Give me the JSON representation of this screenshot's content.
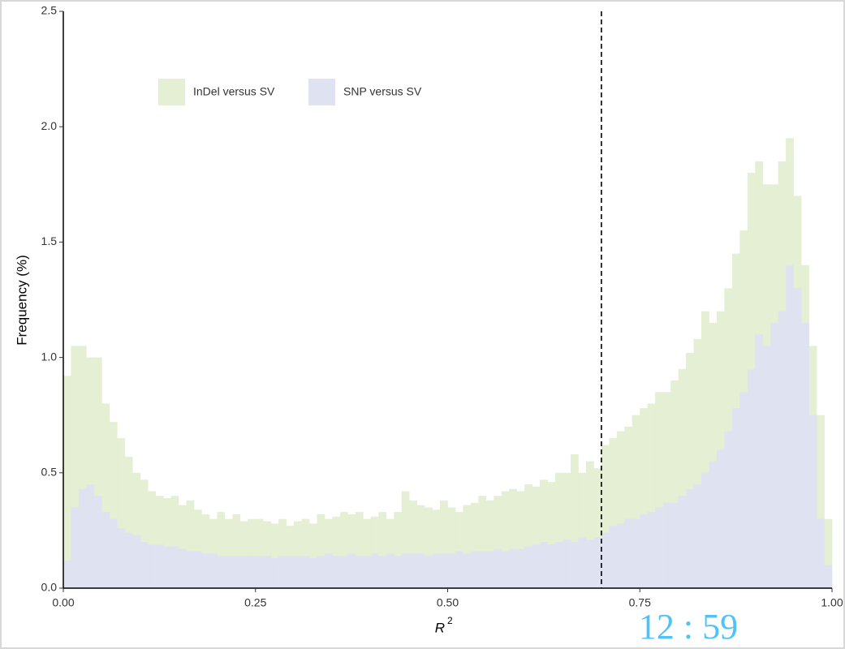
{
  "chart_data": {
    "type": "histogram",
    "xlabel": "R",
    "xlabel_superscript": "2",
    "ylabel": "Frequency (%)",
    "bins": [
      0,
      0.01,
      0.02,
      0.03,
      0.04,
      0.05,
      0.06,
      0.07,
      0.08,
      0.09,
      0.1,
      0.11,
      0.12,
      0.13,
      0.14,
      0.15,
      0.16,
      0.17,
      0.18,
      0.19,
      0.2,
      0.21,
      0.22,
      0.23,
      0.24,
      0.25,
      0.26,
      0.27,
      0.28,
      0.29,
      0.3,
      0.31,
      0.32,
      0.33,
      0.34,
      0.35,
      0.36,
      0.37,
      0.38,
      0.39,
      0.4,
      0.41,
      0.42,
      0.43,
      0.44,
      0.45,
      0.46,
      0.47,
      0.48,
      0.49,
      0.5,
      0.51,
      0.52,
      0.53,
      0.54,
      0.55,
      0.56,
      0.57,
      0.58,
      0.59,
      0.6,
      0.61,
      0.62,
      0.63,
      0.64,
      0.65,
      0.66,
      0.67,
      0.68,
      0.69,
      0.7,
      0.71,
      0.72,
      0.73,
      0.74,
      0.75,
      0.76,
      0.77,
      0.78,
      0.79,
      0.8,
      0.81,
      0.82,
      0.83,
      0.84,
      0.85,
      0.86,
      0.87,
      0.88,
      0.89,
      0.9,
      0.91,
      0.92,
      0.93,
      0.94,
      0.95,
      0.96,
      0.97,
      0.98,
      0.99,
      1
    ],
    "series": [
      {
        "name": "InDel versus SV",
        "color": "#e4efd3",
        "values": [
          0.92,
          1.05,
          1.05,
          1.0,
          1.0,
          0.8,
          0.72,
          0.65,
          0.57,
          0.5,
          0.47,
          0.42,
          0.4,
          0.39,
          0.4,
          0.36,
          0.38,
          0.34,
          0.32,
          0.3,
          0.33,
          0.3,
          0.32,
          0.29,
          0.3,
          0.3,
          0.29,
          0.28,
          0.3,
          0.27,
          0.29,
          0.3,
          0.28,
          0.32,
          0.3,
          0.31,
          0.33,
          0.32,
          0.33,
          0.3,
          0.31,
          0.33,
          0.3,
          0.33,
          0.42,
          0.38,
          0.36,
          0.35,
          0.34,
          0.38,
          0.35,
          0.33,
          0.36,
          0.37,
          0.4,
          0.38,
          0.4,
          0.42,
          0.43,
          0.42,
          0.45,
          0.44,
          0.47,
          0.46,
          0.5,
          0.5,
          0.58,
          0.5,
          0.55,
          0.52,
          0.62,
          0.65,
          0.68,
          0.7,
          0.75,
          0.78,
          0.8,
          0.85,
          0.85,
          0.9,
          0.95,
          1.02,
          1.08,
          1.2,
          1.15,
          1.2,
          1.3,
          1.45,
          1.55,
          1.8,
          1.85,
          1.75,
          1.75,
          1.85,
          1.95,
          1.7,
          1.4,
          1.05,
          0.75,
          0.3
        ]
      },
      {
        "name": "SNP versus SV",
        "color": "#dfe3f1",
        "values": [
          0.12,
          0.35,
          0.43,
          0.45,
          0.4,
          0.33,
          0.3,
          0.26,
          0.24,
          0.23,
          0.2,
          0.19,
          0.19,
          0.18,
          0.18,
          0.17,
          0.16,
          0.16,
          0.15,
          0.15,
          0.14,
          0.14,
          0.14,
          0.14,
          0.14,
          0.14,
          0.14,
          0.13,
          0.14,
          0.14,
          0.14,
          0.14,
          0.13,
          0.14,
          0.15,
          0.14,
          0.14,
          0.15,
          0.14,
          0.14,
          0.15,
          0.14,
          0.15,
          0.14,
          0.15,
          0.15,
          0.15,
          0.14,
          0.15,
          0.15,
          0.15,
          0.16,
          0.15,
          0.16,
          0.16,
          0.16,
          0.17,
          0.16,
          0.17,
          0.17,
          0.18,
          0.19,
          0.2,
          0.19,
          0.2,
          0.21,
          0.2,
          0.22,
          0.21,
          0.22,
          0.24,
          0.27,
          0.28,
          0.3,
          0.3,
          0.32,
          0.33,
          0.35,
          0.37,
          0.37,
          0.4,
          0.43,
          0.45,
          0.5,
          0.55,
          0.6,
          0.68,
          0.78,
          0.85,
          0.95,
          1.1,
          1.05,
          1.15,
          1.2,
          1.4,
          1.3,
          1.15,
          0.75,
          0.3,
          0.1
        ]
      }
    ],
    "vline": 0.7,
    "xlim": [
      0,
      1
    ],
    "ylim": [
      0,
      2.5
    ],
    "xticks": [
      {
        "value": 0,
        "label": "0.00"
      },
      0.25,
      {
        "value": 0.5,
        "label": "0.50"
      },
      0.75,
      {
        "value": 1,
        "label": "1.00"
      }
    ],
    "yticks": [
      {
        "value": 0,
        "label": "0.0"
      },
      0.5,
      {
        "value": 1,
        "label": "1.0"
      },
      1.5,
      {
        "value": 2,
        "label": "2.0"
      },
      2.5
    ],
    "clock": "12 : 59"
  }
}
